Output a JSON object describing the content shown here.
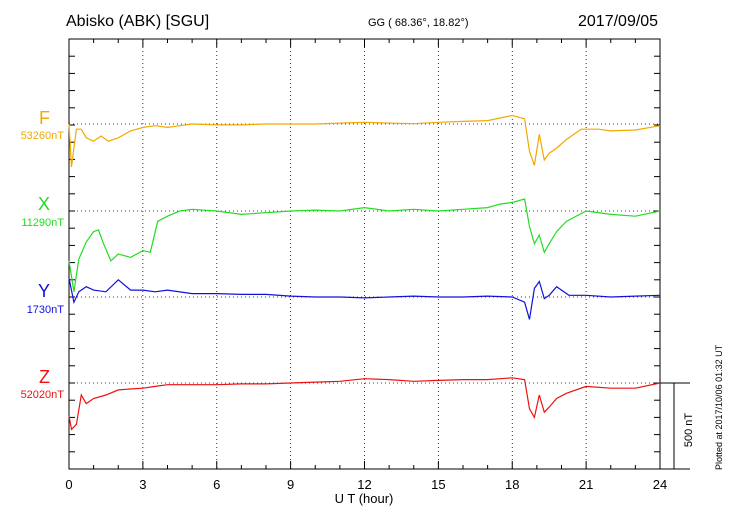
{
  "header": {
    "station": "Abisko (ABK)  [SGU]",
    "coords_label": "GG ( 68.36°,  18.82°)",
    "date": "2017/09/05"
  },
  "plotted_note": "Plotted at 2017/10/06 01:32 UT",
  "colors": {
    "F": "#f2a900",
    "X": "#22dd22",
    "Y": "#1111dd",
    "Z": "#ee1111",
    "grid": "#000000"
  },
  "chart_data": {
    "type": "line",
    "xlabel": "U T (hour)",
    "xlim": [
      0,
      24
    ],
    "xticks": [
      "0",
      "3",
      "6",
      "9",
      "12",
      "15",
      "18",
      "21",
      "24"
    ],
    "scale_bar_label": "500 nT",
    "scale_bar_nT": 500,
    "grid": true,
    "series": [
      {
        "name": "F",
        "baseline_label": "53260nT",
        "baseline_nT": 53260,
        "x": [
          0,
          0.1,
          0.2,
          0.3,
          0.5,
          0.7,
          1.0,
          1.3,
          1.6,
          2.0,
          2.5,
          3.0,
          3.5,
          4.0,
          4.5,
          5.0,
          6.0,
          7.0,
          8.0,
          9.0,
          10.0,
          11.0,
          12.0,
          13.0,
          14.0,
          15.0,
          16.0,
          17.0,
          18.0,
          18.5,
          18.7,
          18.9,
          19.1,
          19.3,
          19.5,
          19.8,
          20.2,
          20.8,
          21.5,
          22.0,
          23.0,
          24.0
        ],
        "nT": [
          53260,
          53010,
          53120,
          53230,
          53230,
          53180,
          53160,
          53190,
          53160,
          53180,
          53220,
          53240,
          53250,
          53240,
          53250,
          53260,
          53255,
          53255,
          53260,
          53260,
          53260,
          53265,
          53270,
          53265,
          53262,
          53270,
          53275,
          53280,
          53310,
          53290,
          53100,
          53020,
          53200,
          53050,
          53090,
          53120,
          53170,
          53230,
          53230,
          53220,
          53225,
          53250
        ]
      },
      {
        "name": "X",
        "baseline_label": "11290nT",
        "baseline_nT": 11290,
        "x": [
          0,
          0.2,
          0.4,
          0.7,
          1.0,
          1.2,
          1.4,
          1.7,
          2.0,
          2.5,
          3.0,
          3.3,
          3.6,
          4.0,
          4.5,
          5.0,
          6.0,
          7.0,
          8.0,
          9.0,
          10.0,
          11.0,
          12.0,
          13.0,
          14.0,
          15.0,
          16.0,
          17.0,
          17.5,
          18.0,
          18.5,
          18.7,
          18.9,
          19.1,
          19.3,
          19.5,
          19.8,
          20.2,
          21.0,
          22.0,
          23.0,
          24.0
        ],
        "nT": [
          11000,
          10820,
          11010,
          11110,
          11170,
          11180,
          11100,
          11000,
          11040,
          11020,
          11060,
          11050,
          11230,
          11260,
          11290,
          11300,
          11290,
          11270,
          11280,
          11290,
          11295,
          11290,
          11310,
          11290,
          11300,
          11290,
          11300,
          11310,
          11330,
          11340,
          11360,
          11200,
          11100,
          11150,
          11050,
          11100,
          11170,
          11230,
          11290,
          11270,
          11260,
          11290
        ]
      },
      {
        "name": "Y",
        "baseline_label": "1730nT",
        "baseline_nT": 1730,
        "x": [
          0,
          0.2,
          0.4,
          0.7,
          1.0,
          1.5,
          2.0,
          2.5,
          3.0,
          3.5,
          4.0,
          5.0,
          6.0,
          7.0,
          8.0,
          9.0,
          10.0,
          11.0,
          12.0,
          13.0,
          14.0,
          15.0,
          16.0,
          17.0,
          18.0,
          18.5,
          18.7,
          18.9,
          19.1,
          19.3,
          19.5,
          19.8,
          20.3,
          21.0,
          22.0,
          23.0,
          24.0
        ],
        "nT": [
          1840,
          1700,
          1760,
          1790,
          1770,
          1760,
          1830,
          1770,
          1770,
          1760,
          1770,
          1750,
          1750,
          1745,
          1745,
          1735,
          1730,
          1730,
          1725,
          1730,
          1735,
          1730,
          1730,
          1735,
          1730,
          1700,
          1600,
          1780,
          1820,
          1720,
          1740,
          1790,
          1740,
          1740,
          1730,
          1735,
          1740
        ]
      },
      {
        "name": "Z",
        "baseline_label": "52020nT",
        "baseline_nT": 52020,
        "x": [
          0,
          0.1,
          0.3,
          0.5,
          0.7,
          1.0,
          1.5,
          2.0,
          2.5,
          3.0,
          3.5,
          4.0,
          5.0,
          6.0,
          7.0,
          8.0,
          9.0,
          10.0,
          11.0,
          12.0,
          13.0,
          14.0,
          15.0,
          16.0,
          17.0,
          18.0,
          18.5,
          18.7,
          18.9,
          19.1,
          19.3,
          19.5,
          19.8,
          20.2,
          21.0,
          22.0,
          23.0,
          24.0
        ],
        "nT": [
          51830,
          51750,
          51780,
          51950,
          51900,
          51930,
          51950,
          51980,
          51985,
          51990,
          52000,
          52010,
          52010,
          52010,
          52015,
          52015,
          52020,
          52025,
          52030,
          52045,
          52040,
          52030,
          52035,
          52040,
          52040,
          52050,
          52040,
          51870,
          51820,
          51950,
          51850,
          51880,
          51930,
          51960,
          52000,
          51990,
          51990,
          52020
        ]
      }
    ]
  }
}
